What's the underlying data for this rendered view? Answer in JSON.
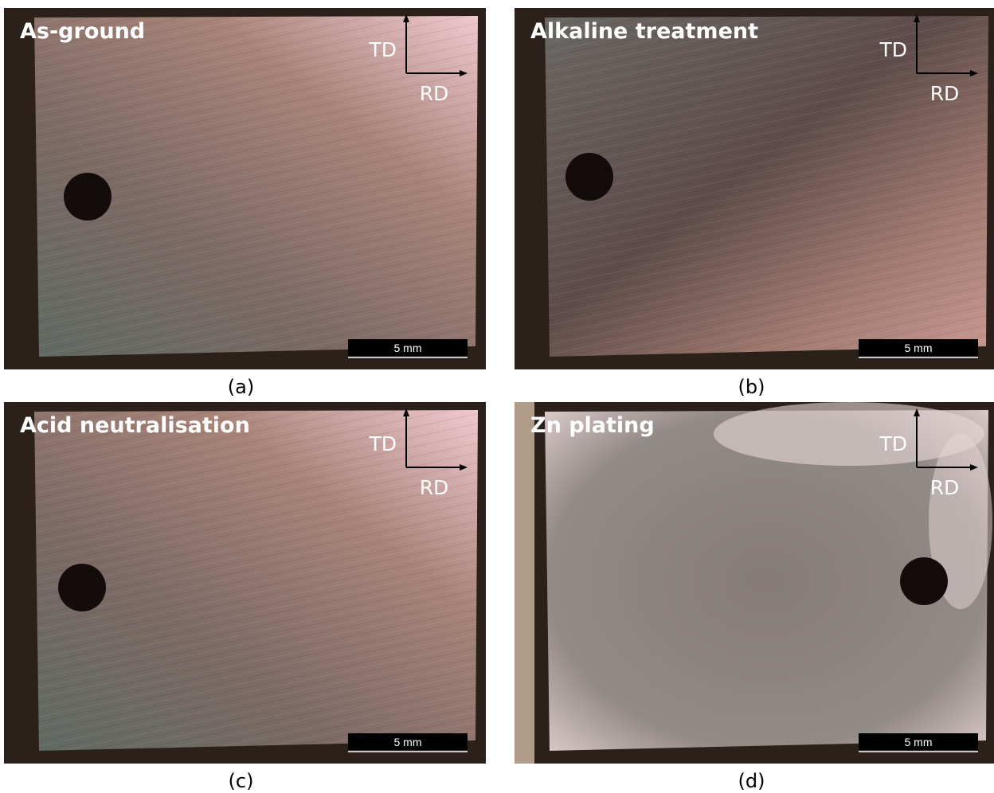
{
  "panels": [
    {
      "label": "As-ground",
      "td": "TD",
      "rd": "RD",
      "scale": "5 mm",
      "caption": "(a)"
    },
    {
      "label": "Alkaline treatment",
      "td": "TD",
      "rd": "RD",
      "scale": "5 mm",
      "caption": "(b)"
    },
    {
      "label": "Acid neutralisation",
      "td": "TD",
      "rd": "RD",
      "scale": "5 mm",
      "caption": "(c)"
    },
    {
      "label": "Zn plating",
      "td": "TD",
      "rd": "RD",
      "scale": "5 mm",
      "caption": "(d)"
    }
  ]
}
